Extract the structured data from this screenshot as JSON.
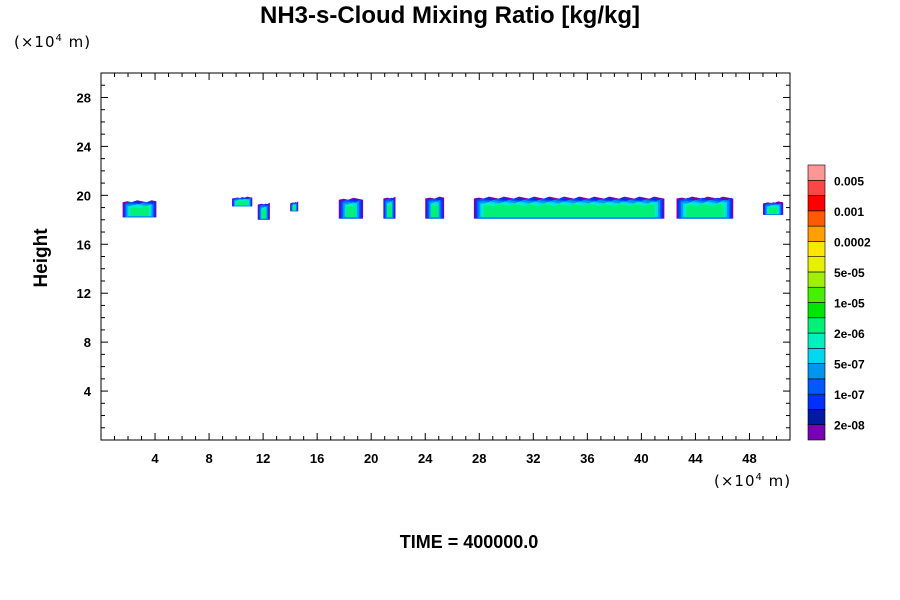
{
  "chart_data": {
    "type": "heatmap",
    "title": "NH3-s-Cloud Mixing Ratio [kg/kg]",
    "ylabel": "Height",
    "xlabel": "",
    "x_unit": {
      "prefix": "(×10",
      "exp": "4",
      "suffix": " m)"
    },
    "y_unit": {
      "prefix": "(×10",
      "exp": "4",
      "suffix": " m)"
    },
    "footer": "TIME = 400000.0",
    "xlim": [
      0,
      51
    ],
    "ylim": [
      0,
      30
    ],
    "x_ticks": [
      4,
      8,
      12,
      16,
      20,
      24,
      28,
      32,
      36,
      40,
      44,
      48
    ],
    "y_ticks": [
      4,
      8,
      12,
      16,
      20,
      24,
      28
    ],
    "colorbar": {
      "colors": [
        "#7a00b4",
        "#001aa0",
        "#0030ff",
        "#005aff",
        "#0096f0",
        "#00d8f0",
        "#00f0c0",
        "#00f078",
        "#00e600",
        "#46f000",
        "#a0f000",
        "#e6f000",
        "#ffe600",
        "#ffa000",
        "#ff5a00",
        "#ff0000",
        "#ff4646",
        "#ff9696"
      ],
      "labels": [
        "2e-08",
        "1e-07",
        "5e-07",
        "2e-06",
        "1e-05",
        "5e-05",
        "0.0002",
        "0.001",
        "0.005"
      ]
    },
    "cloud_blobs": [
      {
        "x0": 1.6,
        "x1": 4.1,
        "base": 18.2,
        "top": 19.6
      },
      {
        "x0": 9.7,
        "x1": 11.2,
        "base": 19.1,
        "top": 19.9
      },
      {
        "x0": 11.6,
        "x1": 12.5,
        "base": 18.0,
        "top": 19.4
      },
      {
        "x0": 14.0,
        "x1": 14.6,
        "base": 18.7,
        "top": 19.5
      },
      {
        "x0": 17.6,
        "x1": 19.4,
        "base": 18.1,
        "top": 19.8
      },
      {
        "x0": 20.9,
        "x1": 21.8,
        "base": 18.1,
        "top": 19.9
      },
      {
        "x0": 24.0,
        "x1": 25.4,
        "base": 18.1,
        "top": 19.9
      },
      {
        "x0": 27.6,
        "x1": 41.7,
        "base": 18.1,
        "top": 19.9
      },
      {
        "x0": 42.6,
        "x1": 46.8,
        "base": 18.1,
        "top": 19.9
      },
      {
        "x0": 49.0,
        "x1": 50.5,
        "base": 18.4,
        "top": 19.5
      }
    ]
  }
}
